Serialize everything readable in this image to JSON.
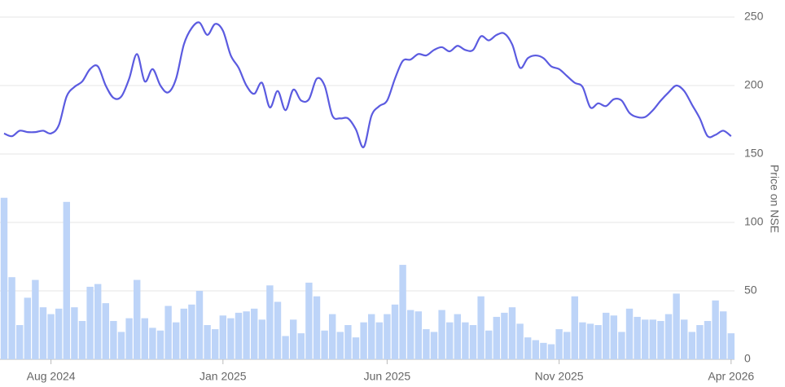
{
  "chart_data": {
    "type": "combo",
    "y_axis_label": "Price on NSE",
    "categories": [
      null,
      null,
      null,
      null,
      null,
      null,
      "Aug 2024",
      null,
      null,
      null,
      null,
      null,
      null,
      null,
      null,
      null,
      null,
      null,
      null,
      null,
      null,
      null,
      null,
      null,
      null,
      null,
      null,
      null,
      "Jan 2025",
      null,
      null,
      null,
      null,
      null,
      null,
      null,
      null,
      null,
      null,
      null,
      null,
      null,
      null,
      null,
      null,
      null,
      null,
      null,
      null,
      "Jun 2025",
      null,
      null,
      null,
      null,
      null,
      null,
      null,
      null,
      null,
      null,
      null,
      null,
      null,
      null,
      null,
      null,
      null,
      null,
      null,
      null,
      null,
      "Nov 2025",
      null,
      null,
      null,
      null,
      null,
      null,
      null,
      null,
      null,
      null,
      null,
      null,
      null,
      null,
      null,
      null,
      null,
      null,
      null,
      null,
      null,
      "Apr 2026"
    ],
    "series": [
      {
        "type": "bar",
        "color": "#bdd4f8",
        "values": [
          118,
          60,
          25,
          45,
          58,
          38,
          33,
          37,
          115,
          38,
          28,
          53,
          55,
          41,
          28,
          20,
          30,
          58,
          30,
          23,
          21,
          39,
          27,
          37,
          40,
          50,
          25,
          22,
          32,
          30,
          34,
          35,
          37,
          29,
          54,
          42,
          17,
          29,
          19,
          56,
          46,
          21,
          33,
          20,
          25,
          16,
          27,
          33,
          27,
          33,
          40,
          69,
          36,
          35,
          22,
          20,
          36,
          27,
          33,
          27,
          25,
          46,
          21,
          31,
          34,
          38,
          26,
          16,
          14,
          12,
          11,
          22,
          20,
          46,
          27,
          26,
          25,
          34,
          32,
          20,
          37,
          31,
          29,
          29,
          28,
          33,
          48,
          29,
          20,
          25,
          28,
          43,
          35,
          19
        ]
      },
      {
        "type": "line",
        "color": "#5b5be0",
        "values": [
          165,
          163,
          167,
          166,
          166,
          167,
          165,
          171,
          192,
          199,
          203,
          212,
          214,
          200,
          191,
          192,
          205,
          223,
          203,
          212,
          200,
          195,
          205,
          230,
          242,
          246,
          237,
          245,
          240,
          222,
          213,
          200,
          194,
          202,
          184,
          196,
          182,
          197,
          189,
          190,
          205,
          200,
          178,
          176,
          176,
          168,
          155,
          178,
          185,
          189,
          205,
          218,
          219,
          223,
          222,
          226,
          228,
          225,
          229,
          226,
          226,
          236,
          233,
          237,
          238,
          230,
          213,
          220,
          222,
          220,
          214,
          212,
          207,
          202,
          199,
          184,
          187,
          185,
          190,
          189,
          180,
          177,
          177,
          182,
          189,
          195,
          200,
          196,
          186,
          176,
          163,
          164,
          167,
          163
        ]
      }
    ],
    "ylim": [
      0,
      250
    ],
    "yticks": [
      0,
      50,
      100,
      150,
      200,
      250
    ],
    "grid": true
  }
}
